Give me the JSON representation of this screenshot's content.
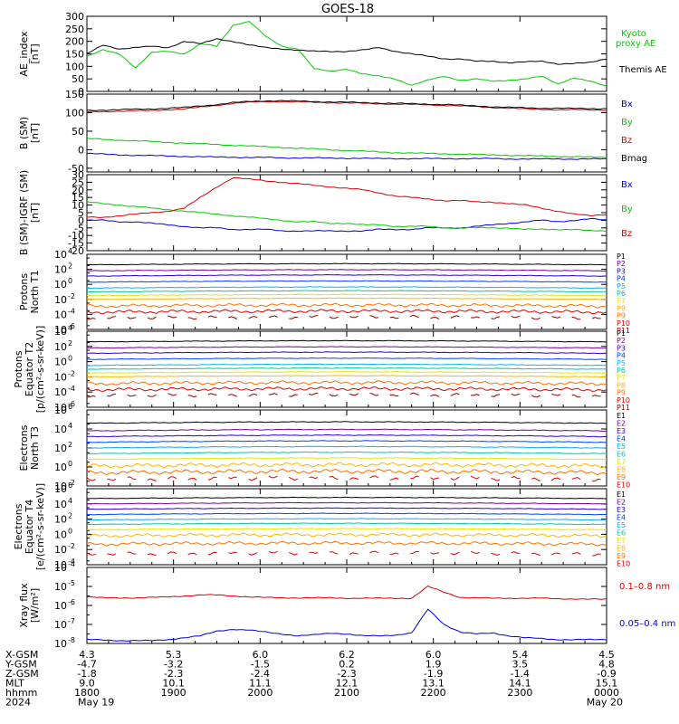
{
  "title": "GOES-18",
  "colors": {
    "black": "#000000",
    "green": "#00cc00",
    "red": "#dd0000",
    "blue": "#0000dd",
    "P1": "#000000",
    "P2": "#7a0096",
    "P3": "#2a00cc",
    "P4": "#0040ff",
    "P5": "#00b4ff",
    "P6": "#00c8a0",
    "P7": "#e6e600",
    "P8": "#ffb400",
    "P9": "#ff7000",
    "P10": "#e00000",
    "P11": "#8c0000"
  },
  "chart_data": [
    {
      "type": "line",
      "id": "ae",
      "ylabel": [
        "AE_index",
        "[nT]"
      ],
      "ylim": [
        0,
        300
      ],
      "yticks": [
        0,
        50,
        100,
        150,
        200,
        250,
        300
      ],
      "series": [
        {
          "name": "Kyoto proxy AE",
          "color": "#00cc00",
          "values": [
            140,
            165,
            150,
            95,
            155,
            160,
            150,
            190,
            180,
            265,
            280,
            220,
            180,
            170,
            90,
            80,
            90,
            70,
            60,
            50,
            25,
            45,
            60,
            45,
            50,
            40,
            45,
            50,
            60,
            30,
            55,
            40,
            20
          ]
        },
        {
          "name": "Themis AE",
          "color": "#000000",
          "values": [
            150,
            185,
            170,
            175,
            180,
            175,
            200,
            190,
            210,
            200,
            185,
            175,
            170,
            165,
            160,
            160,
            160,
            165,
            175,
            160,
            150,
            140,
            130,
            130,
            120,
            120,
            115,
            118,
            120,
            110,
            112,
            115,
            130
          ]
        }
      ],
      "legend": [
        "Kyoto proxy AE",
        "Themis AE"
      ]
    },
    {
      "type": "line",
      "id": "bsm",
      "ylabel": [
        "B (SM)",
        "[nT]"
      ],
      "ylim": [
        -60,
        150
      ],
      "yticks": [
        -50,
        0,
        50,
        100,
        150
      ],
      "series": [
        {
          "name": "Bx",
          "color": "#0000dd",
          "values": [
            -10,
            -12,
            -14,
            -15,
            -16,
            -17,
            -18,
            -19,
            -20,
            -20,
            -21,
            -21,
            -22,
            -22,
            -22,
            -23,
            -23,
            -23,
            -24,
            -24,
            -24,
            -24,
            -24,
            -24,
            -24,
            -24,
            -25,
            -25,
            -25,
            -25,
            -25,
            -25,
            -25
          ]
        },
        {
          "name": "By",
          "color": "#00cc00",
          "values": [
            30,
            28,
            26,
            24,
            22,
            20,
            18,
            16,
            14,
            12,
            10,
            8,
            6,
            4,
            2,
            0,
            -2,
            -4,
            -6,
            -8,
            -9,
            -10,
            -11,
            -12,
            -13,
            -14,
            -15,
            -16,
            -17,
            -18,
            -19,
            -20,
            -21
          ]
        },
        {
          "name": "Bz",
          "color": "#dd0000",
          "values": [
            102,
            103,
            104,
            105,
            106,
            108,
            110,
            115,
            120,
            125,
            128,
            130,
            130,
            129,
            128,
            127,
            126,
            125,
            124,
            123,
            122,
            121,
            120,
            118,
            116,
            114,
            112,
            110,
            109,
            108,
            108,
            107,
            107
          ]
        },
        {
          "name": "Bmag",
          "color": "#000000",
          "values": [
            106,
            107,
            108,
            109,
            110,
            112,
            114,
            118,
            122,
            127,
            130,
            132,
            132,
            131,
            130,
            129,
            128,
            127,
            126,
            125,
            124,
            123,
            122,
            120,
            118,
            116,
            114,
            113,
            112,
            112,
            111,
            111,
            111
          ]
        }
      ],
      "legend": [
        "Bx",
        "By",
        "Bz",
        "Bmag"
      ]
    },
    {
      "type": "line",
      "id": "bigrf",
      "ylabel": [
        "B (SM)-IGRF (SM)",
        "[nT]"
      ],
      "ylim": [
        -20,
        30
      ],
      "yticks": [
        -20,
        -15,
        -10,
        -5,
        0,
        5,
        10,
        15,
        20,
        25,
        30
      ],
      "series": [
        {
          "name": "Bx",
          "color": "#0000dd",
          "values": [
            0,
            0,
            -1,
            -1,
            -2,
            -3,
            -4,
            -5,
            -5,
            -6,
            -6,
            -6,
            -7,
            -7,
            -7,
            -7,
            -7,
            -7,
            -6,
            -6,
            -6,
            -5,
            -5,
            -5,
            -4,
            -3,
            -2,
            -1,
            0,
            -1,
            0,
            1,
            0
          ]
        },
        {
          "name": "By",
          "color": "#00cc00",
          "values": [
            12,
            11,
            10,
            9,
            8,
            7,
            6,
            5,
            4,
            3,
            2,
            1,
            0,
            -1,
            -1,
            -2,
            -2,
            -3,
            -3,
            -4,
            -4,
            -4,
            -5,
            -5,
            -5,
            -5,
            -5,
            -6,
            -6,
            -6,
            -6,
            -7,
            -7
          ]
        },
        {
          "name": "Bz",
          "color": "#dd0000",
          "values": [
            2,
            2,
            3,
            4,
            5,
            6,
            8,
            15,
            22,
            28,
            27,
            26,
            25,
            24,
            23,
            22,
            21,
            20,
            18,
            16,
            15,
            14,
            13,
            13,
            12,
            12,
            11,
            10,
            8,
            6,
            4,
            3,
            4
          ]
        }
      ],
      "legend": [
        "Bx",
        "By",
        "Bz"
      ]
    },
    {
      "type": "line",
      "id": "protons-north",
      "log": true,
      "ylabel": [
        "Protons",
        "North T1"
      ],
      "ylim_exp": [
        -6,
        4
      ],
      "channels": [
        "P1",
        "P2",
        "P3",
        "P4",
        "P5",
        "P6",
        "P7",
        "P8",
        "P9",
        "P10",
        "P11"
      ],
      "levels_exp": [
        2.6,
        1.8,
        1.1,
        0.3,
        -0.5,
        -1.0,
        -1.5,
        -2.0,
        -2.9,
        -3.7,
        -4.5
      ]
    },
    {
      "type": "line",
      "id": "protons-equator",
      "log": true,
      "ylabel": [
        "Protons",
        "Equator T2",
        "[p/(cm²-s-sr-keV)]"
      ],
      "ylim_exp": [
        -6,
        4
      ],
      "channels": [
        "P1",
        "P2",
        "P3",
        "P4",
        "P5",
        "P6",
        "P7",
        "P8",
        "P9",
        "P10",
        "P11"
      ],
      "levels_exp": [
        2.6,
        1.8,
        1.1,
        0.3,
        -0.5,
        -1.0,
        -1.5,
        -2.0,
        -2.9,
        -3.7,
        -4.5
      ]
    },
    {
      "type": "line",
      "id": "electrons-north",
      "log": true,
      "ylabel": [
        "Electrons",
        "North T3"
      ],
      "ylim_exp": [
        -2,
        6
      ],
      "channels": [
        "E1",
        "E2",
        "E3",
        "E4",
        "E5",
        "E6",
        "E7",
        "E8",
        "E9",
        "E10"
      ],
      "levels_exp": [
        4.6,
        3.8,
        3.2,
        2.6,
        2.0,
        1.4,
        0.8,
        0.1,
        -0.6,
        -1.3
      ]
    },
    {
      "type": "line",
      "id": "electrons-equator",
      "log": true,
      "ylabel": [
        "Electrons",
        "Equator T4",
        "[e/(cm²-s-sr-keV)]"
      ],
      "ylim_exp": [
        -4,
        6
      ],
      "channels": [
        "E1",
        "E2",
        "E3",
        "E4",
        "E5",
        "E6",
        "E7",
        "E8",
        "E9",
        "E10"
      ],
      "levels_exp": [
        4.7,
        4.0,
        3.3,
        2.6,
        1.9,
        1.3,
        0.6,
        -0.2,
        -1.3,
        -2.6
      ]
    },
    {
      "type": "line",
      "id": "xray",
      "log": true,
      "ylabel": [
        "Xray flux",
        "[W/m²]"
      ],
      "ylim_exp": [
        -8,
        -4
      ],
      "series": [
        {
          "name": "0.1-0.8 nm",
          "color": "#dd0000",
          "exp": [
            -5.55,
            -5.6,
            -5.6,
            -5.6,
            -5.58,
            -5.55,
            -5.5,
            -5.45,
            -5.45,
            -5.5,
            -5.55,
            -5.58,
            -5.6,
            -5.6,
            -5.6,
            -5.6,
            -5.62,
            -5.62,
            -5.62,
            -5.62,
            -5.62,
            -5.0,
            -5.3,
            -5.58,
            -5.6,
            -5.62,
            -5.62,
            -5.62,
            -5.62,
            -5.65,
            -5.65,
            -5.67,
            -5.68
          ]
        },
        {
          "name": "0.05-0.4 nm",
          "color": "#0000dd",
          "exp": [
            -7.8,
            -7.82,
            -7.85,
            -7.85,
            -7.85,
            -7.8,
            -7.7,
            -7.6,
            -7.35,
            -7.25,
            -7.3,
            -7.4,
            -7.5,
            -7.6,
            -7.55,
            -7.45,
            -7.5,
            -7.6,
            -7.6,
            -7.55,
            -7.45,
            -6.2,
            -7.0,
            -7.4,
            -7.5,
            -7.45,
            -7.6,
            -7.7,
            -7.75,
            -7.8,
            -7.8,
            -7.8,
            -7.8
          ]
        }
      ],
      "legend": [
        "0.1-0.8 nm",
        "0.05-0.4 nm"
      ]
    }
  ],
  "legend_text": {
    "ae_kyoto_1": "Kyoto",
    "ae_kyoto_2": "proxy AE",
    "ae_themis": "Themis AE",
    "x_low": "0.1–0.8 nm",
    "x_high": "0.05–0.4 nm"
  },
  "ephemeris": {
    "labels": [
      "X-GSM",
      "Y-GSM",
      "Z-GSM",
      "MLT",
      "hhmm",
      "2024"
    ],
    "columns": [
      [
        "4.3",
        "-4.7",
        "-1.8",
        "9.0",
        "1800",
        "May 19"
      ],
      [
        "5.3",
        "-3.2",
        "-2.3",
        "10.1",
        "1900",
        ""
      ],
      [
        "6.0",
        "-1.5",
        "-2.4",
        "11.1",
        "2000",
        ""
      ],
      [
        "6.2",
        "0.2",
        "-2.3",
        "12.1",
        "2100",
        ""
      ],
      [
        "6.0",
        "1.9",
        "-1.9",
        "13.1",
        "2200",
        ""
      ],
      [
        "5.4",
        "3.5",
        "-1.4",
        "14.1",
        "2300",
        ""
      ],
      [
        "4.5",
        "4.8",
        "-0.9",
        "15.1",
        "0000",
        "May 20"
      ]
    ]
  }
}
